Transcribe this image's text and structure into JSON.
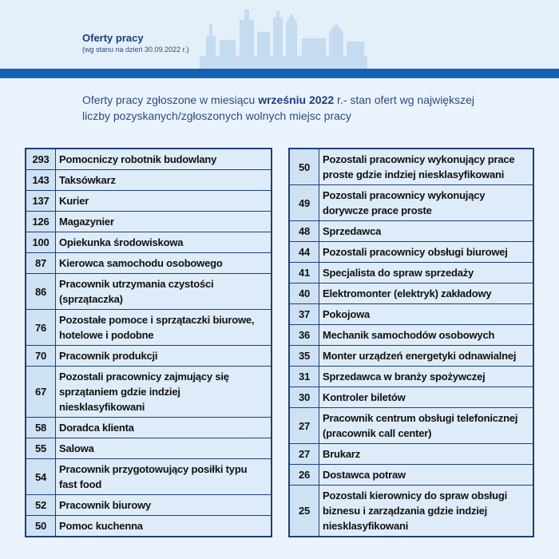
{
  "header": {
    "title": "Oferty pracy",
    "subtitle": "(wg stanu na dzień 30.09.2022 r.)"
  },
  "intro": {
    "before": "Oferty pracy zgłoszone w miesiącu ",
    "bold": "wrześniu 2022",
    "after": " r.- stan ofert wg największej liczby pozyskanych/zgłoszonych wolnych miejsc pracy"
  },
  "tables": [
    {
      "rows": [
        [
          293,
          "Pomocniczy robotnik budowlany"
        ],
        [
          143,
          "Taksówkarz"
        ],
        [
          137,
          "Kurier"
        ],
        [
          126,
          "Magazynier"
        ],
        [
          100,
          "Opiekunka środowiskowa"
        ],
        [
          87,
          "Kierowca samochodu osobowego"
        ],
        [
          86,
          "Pracownik utrzymania czystości (sprzątaczka)"
        ],
        [
          76,
          "Pozostałe pomoce i sprzątaczki biurowe, hotelowe i podobne"
        ],
        [
          70,
          "Pracownik produkcji"
        ],
        [
          67,
          "Pozostali pracownicy zajmujący się sprzątaniem gdzie indziej niesklasyfikowani"
        ],
        [
          58,
          "Doradca klienta"
        ],
        [
          55,
          "Salowa"
        ],
        [
          54,
          "Pracownik przygotowujący posiłki typu fast food"
        ],
        [
          52,
          "Pracownik biurowy"
        ],
        [
          50,
          "Pomoc kuchenna"
        ]
      ]
    },
    {
      "rows": [
        [
          50,
          "Pozostali pracownicy wykonujący prace proste gdzie indziej niesklasyfikowani"
        ],
        [
          49,
          "Pozostali pracownicy wykonujący dorywcze prace proste"
        ],
        [
          48,
          "Sprzedawca"
        ],
        [
          44,
          "Pozostali pracownicy obsługi biurowej"
        ],
        [
          41,
          "Specjalista do spraw sprzedaży"
        ],
        [
          40,
          "Elektromonter (elektryk) zakładowy"
        ],
        [
          37,
          "Pokojowa"
        ],
        [
          36,
          "Mechanik samochodów osobowych"
        ],
        [
          35,
          "Monter urządzeń energetyki odnawialnej"
        ],
        [
          31,
          "Sprzedawca w branży spożywczej"
        ],
        [
          30,
          "Kontroler biletów"
        ],
        [
          27,
          "Pracownik centrum obsługi telefonicznej (pracownik call center)"
        ],
        [
          27,
          "Brukarz"
        ],
        [
          26,
          "Dostawca potraw"
        ],
        [
          25,
          "Pozostali kierownicy do spraw obsługi biznesu i zarządzania gdzie indziej niesklasyfikowani"
        ]
      ]
    }
  ]
}
